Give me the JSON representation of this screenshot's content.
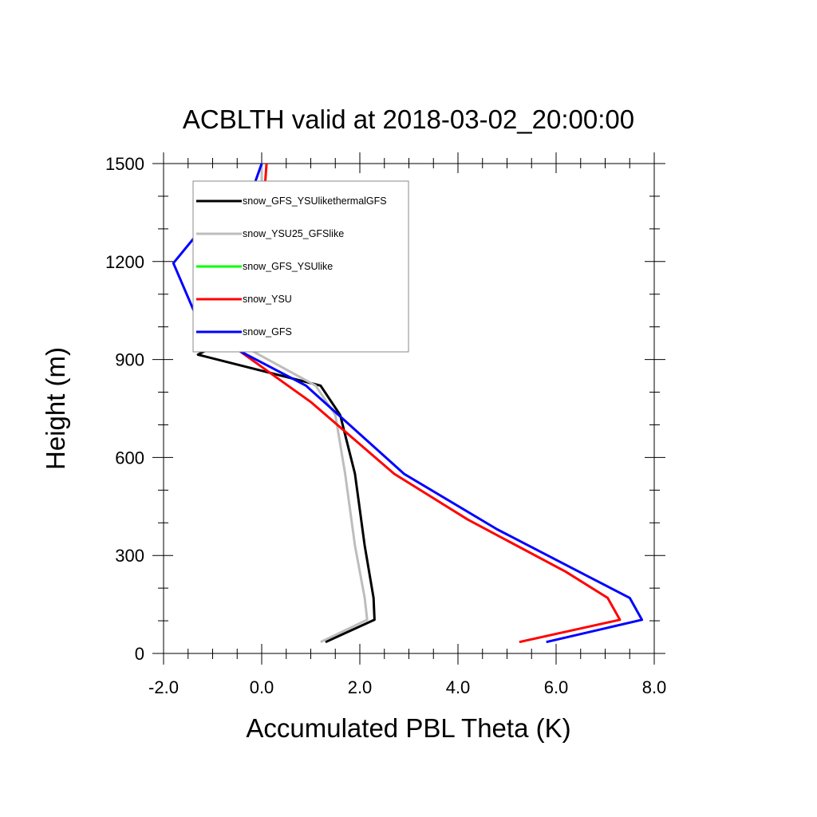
{
  "chart_data": {
    "type": "line",
    "title": "ACBLTH valid at 2018-03-02_20:00:00",
    "xlabel": "Accumulated PBL Theta (K)",
    "ylabel": "Height (m)",
    "xlim": [
      -2.0,
      8.0
    ],
    "ylim": [
      0,
      1500
    ],
    "x_ticks": [
      -2.0,
      0.0,
      2.0,
      4.0,
      6.0,
      8.0
    ],
    "x_tick_labels": [
      "-2.0",
      "0.0",
      "2.0",
      "4.0",
      "6.0",
      "8.0"
    ],
    "y_ticks": [
      0,
      300,
      600,
      900,
      1200,
      1500
    ],
    "y_tick_labels": [
      "0",
      "300",
      "600",
      "900",
      "1200",
      "1500"
    ],
    "grid": false,
    "legend_position": "top-left",
    "series": [
      {
        "name": "snow_GFS_YSUlikethermalGFS",
        "color": "#000000",
        "points": [
          [
            1.3,
            35
          ],
          [
            2.3,
            103
          ],
          [
            2.28,
            170
          ],
          [
            2.1,
            330
          ],
          [
            1.9,
            550
          ],
          [
            1.6,
            730
          ],
          [
            1.2,
            820
          ],
          [
            -1.3,
            915
          ],
          [
            -0.1,
            1010
          ],
          [
            0.0,
            1100
          ],
          [
            0.0,
            1300
          ],
          [
            0.0,
            1500
          ]
        ]
      },
      {
        "name": "snow_YSU25_GFSlike",
        "color": "#bdbdbd",
        "points": [
          [
            1.2,
            35
          ],
          [
            2.15,
            103
          ],
          [
            2.1,
            170
          ],
          [
            1.9,
            330
          ],
          [
            1.7,
            550
          ],
          [
            1.5,
            730
          ],
          [
            1.1,
            820
          ],
          [
            -0.3,
            935
          ],
          [
            -0.05,
            1010
          ],
          [
            0.0,
            1100
          ],
          [
            0.0,
            1300
          ],
          [
            0.0,
            1500
          ]
        ]
      },
      {
        "name": "snow_GFS_YSUlike",
        "color": "#00ff00",
        "points": []
      },
      {
        "name": "snow_YSU",
        "color": "#ff0000",
        "points": [
          [
            5.25,
            35
          ],
          [
            7.3,
            103
          ],
          [
            7.05,
            170
          ],
          [
            6.2,
            250
          ],
          [
            4.2,
            410
          ],
          [
            2.7,
            550
          ],
          [
            1.0,
            770
          ],
          [
            -1.0,
            985
          ],
          [
            -0.8,
            1090
          ],
          [
            -0.05,
            1200
          ],
          [
            0.05,
            1400
          ],
          [
            0.1,
            1500
          ]
        ]
      },
      {
        "name": "snow_GFS",
        "color": "#0000ff",
        "points": [
          [
            5.8,
            35
          ],
          [
            7.75,
            103
          ],
          [
            7.5,
            170
          ],
          [
            6.6,
            240
          ],
          [
            4.8,
            380
          ],
          [
            2.9,
            550
          ],
          [
            0.9,
            820
          ],
          [
            -1.2,
            985
          ],
          [
            -1.8,
            1195
          ],
          [
            -1.2,
            1305
          ],
          [
            -0.2,
            1415
          ],
          [
            0.0,
            1500
          ]
        ]
      }
    ]
  }
}
